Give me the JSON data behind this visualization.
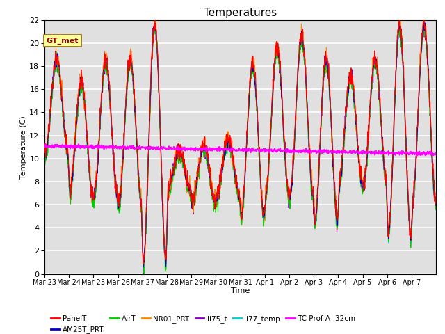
{
  "title": "Temperatures",
  "xlabel": "Time",
  "ylabel": "Temperature (C)",
  "ylim": [
    0,
    22
  ],
  "yticks": [
    0,
    2,
    4,
    6,
    8,
    10,
    12,
    14,
    16,
    18,
    20,
    22
  ],
  "x_labels": [
    "Mar 23",
    "Mar 24",
    "Mar 25",
    "Mar 26",
    "Mar 27",
    "Mar 28",
    "Mar 29",
    "Mar 30",
    "Mar 31",
    "Apr 1",
    "Apr 2",
    "Apr 3",
    "Apr 4",
    "Apr 5",
    "Apr 6",
    "Apr 7"
  ],
  "annotation_text": "GT_met",
  "annotation_color": "#8B0000",
  "annotation_bg": "#FFFF99",
  "series_colors": {
    "PanelT": "#FF0000",
    "AM25T_PRT": "#0000CC",
    "AirT": "#00CC00",
    "NR01_PRT": "#FF8800",
    "li75_t": "#8800BB",
    "li77_temp": "#00CCCC",
    "TC Prof A -32cm": "#FF00FF"
  },
  "background_color": "#E0E0E0",
  "grid_color": "#FFFFFF",
  "title_fontsize": 11
}
